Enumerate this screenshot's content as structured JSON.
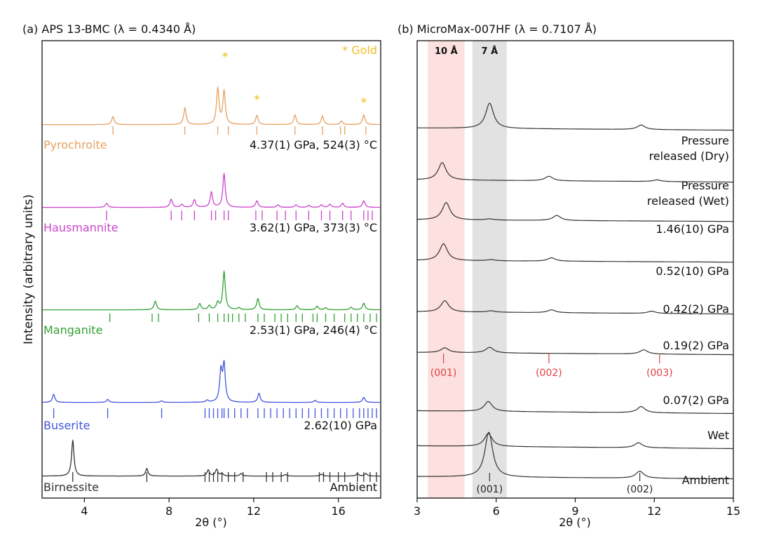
{
  "figure": {
    "ylabel": "Intensity (arbitrary units)",
    "xlabel": "2θ (°)"
  },
  "chart_data": [
    {
      "type": "line",
      "panel": "a",
      "title": "(a) APS 13-BMC (λ = 0.4340 Å)",
      "xlabel": "2θ (°)",
      "ylabel": "Intensity (arbitrary units)",
      "xlim": [
        2,
        18
      ],
      "xticks": [
        4,
        8,
        12,
        16
      ],
      "grid": false,
      "annotation": "* Gold",
      "gold_marker_positions": [
        10.45,
        12.15,
        17.2
      ],
      "series": [
        {
          "name": "Pyrochroite",
          "condition": "4.37(1) GPa, 524(3) °C",
          "color": "#e8a060",
          "baseline": 0,
          "peaks": [
            [
              5.35,
              0.16
            ],
            [
              8.75,
              0.33
            ],
            [
              10.3,
              0.7
            ],
            [
              10.6,
              0.65
            ],
            [
              12.15,
              0.18
            ],
            [
              13.95,
              0.19
            ],
            [
              15.25,
              0.17
            ],
            [
              16.15,
              0.07
            ],
            [
              17.2,
              0.19
            ]
          ],
          "ticks": [
            5.35,
            8.75,
            10.3,
            10.8,
            12.15,
            13.95,
            15.25,
            16.1,
            16.3,
            17.3
          ]
        },
        {
          "name": "Hausmannite",
          "condition": "3.62(1) GPa, 373(3) °C",
          "color": "#cc44cc",
          "baseline": 0,
          "peaks": [
            [
              5.05,
              0.08
            ],
            [
              8.1,
              0.16
            ],
            [
              8.6,
              0.06
            ],
            [
              9.2,
              0.15
            ],
            [
              10.0,
              0.3
            ],
            [
              10.6,
              0.66
            ],
            [
              12.15,
              0.13
            ],
            [
              13.15,
              0.05
            ],
            [
              14.0,
              0.05
            ],
            [
              14.6,
              0.04
            ],
            [
              15.2,
              0.05
            ],
            [
              15.6,
              0.06
            ],
            [
              16.2,
              0.08
            ],
            [
              17.2,
              0.13
            ]
          ],
          "ticks": [
            5.05,
            8.1,
            8.6,
            9.2,
            10.0,
            10.2,
            10.6,
            10.8,
            12.1,
            12.4,
            13.1,
            13.5,
            14.0,
            14.6,
            15.2,
            15.6,
            16.2,
            16.6,
            17.2,
            17.4,
            17.6
          ]
        },
        {
          "name": "Manganite",
          "condition": "2.53(1) GPa, 246(4) °C",
          "color": "#33a033",
          "baseline": 0,
          "peaks": [
            [
              7.35,
              0.17
            ],
            [
              9.45,
              0.12
            ],
            [
              9.9,
              0.08
            ],
            [
              10.3,
              0.14
            ],
            [
              10.6,
              0.75
            ],
            [
              11.3,
              0.04
            ],
            [
              12.2,
              0.22
            ],
            [
              14.05,
              0.08
            ],
            [
              15.0,
              0.07
            ],
            [
              15.4,
              0.04
            ],
            [
              16.6,
              0.05
            ],
            [
              17.2,
              0.13
            ]
          ],
          "ticks": [
            5.2,
            7.2,
            7.5,
            9.4,
            9.9,
            10.3,
            10.6,
            10.8,
            11.0,
            11.3,
            11.6,
            12.2,
            12.5,
            13.0,
            13.3,
            13.6,
            14.0,
            14.3,
            14.8,
            15.0,
            15.4,
            15.8,
            16.3,
            16.6,
            16.9,
            17.2,
            17.5,
            17.8
          ]
        },
        {
          "name": "Buserite",
          "condition": "2.62(10) GPa",
          "color": "#4455dd",
          "baseline": 0,
          "peaks": [
            [
              2.55,
              0.16
            ],
            [
              5.1,
              0.06
            ],
            [
              7.65,
              0.03
            ],
            [
              9.8,
              0.04
            ],
            [
              10.45,
              0.6
            ],
            [
              10.6,
              0.72
            ],
            [
              12.25,
              0.18
            ],
            [
              14.9,
              0.04
            ],
            [
              17.2,
              0.1
            ]
          ],
          "ticks": [
            2.55,
            5.1,
            7.65,
            9.7,
            9.9,
            10.1,
            10.3,
            10.5,
            10.6,
            10.8,
            11.1,
            11.4,
            11.7,
            12.2,
            12.5,
            12.8,
            13.1,
            13.4,
            13.7,
            14.0,
            14.3,
            14.6,
            14.9,
            15.2,
            15.5,
            15.8,
            16.1,
            16.4,
            16.7,
            17.0,
            17.2,
            17.4,
            17.6,
            17.8
          ]
        },
        {
          "name": "Birnessite",
          "condition": "Ambient",
          "color": "#333333",
          "baseline": 0,
          "peaks": [
            [
              3.45,
              0.7
            ],
            [
              6.95,
              0.15
            ],
            [
              9.85,
              0.12
            ],
            [
              10.25,
              0.13
            ],
            [
              10.5,
              0.05
            ],
            [
              11.4,
              0.05
            ],
            [
              13.5,
              0.03
            ],
            [
              15.2,
              0.04
            ],
            [
              16.9,
              0.05
            ],
            [
              17.3,
              0.05
            ]
          ],
          "ticks": [
            3.45,
            6.95,
            9.7,
            9.9,
            10.1,
            10.3,
            10.5,
            10.8,
            11.1,
            11.5,
            12.6,
            12.9,
            13.3,
            13.6,
            15.1,
            15.3,
            15.6,
            16.0,
            16.3,
            16.9,
            17.2,
            17.5,
            17.8
          ]
        }
      ]
    },
    {
      "type": "line",
      "panel": "b",
      "title": "(b) MicroMax-007HF (λ = 0.7107 Å)",
      "xlabel": "2θ (°)",
      "xlim": [
        3,
        15
      ],
      "xticks": [
        3,
        6,
        9,
        12,
        15
      ],
      "grid": false,
      "bands": [
        {
          "label": "10 Å",
          "x": [
            3.4,
            4.8
          ],
          "color": "#fde0e0"
        },
        {
          "label": "7 Å",
          "x": [
            5.1,
            6.4
          ],
          "color": "#e2e2e2"
        }
      ],
      "reflections_10A": [
        {
          "label": "(001)",
          "x": 4.0
        },
        {
          "label": "(002)",
          "x": 8.0
        },
        {
          "label": "(003)",
          "x": 12.2
        }
      ],
      "reflections_7A": [
        {
          "label": "(001)",
          "x": 5.75
        },
        {
          "label": "(002)",
          "x": 11.45
        }
      ],
      "series": [
        {
          "name": "Pressure released (Dry)",
          "peaks": [
            [
              5.75,
              0.9
            ],
            [
              11.5,
              0.16
            ]
          ],
          "bg": 0.2
        },
        {
          "name": "Pressure released (Wet)",
          "peaks": [
            [
              3.95,
              0.62
            ],
            [
              8.0,
              0.16
            ],
            [
              12.1,
              0.06
            ]
          ],
          "bg": 0.2
        },
        {
          "name": "1.46(10) GPa",
          "peaks": [
            [
              4.1,
              0.62
            ],
            [
              8.3,
              0.18
            ],
            [
              5.75,
              0.04
            ]
          ],
          "bg": 0.15
        },
        {
          "name": "0.52(10) GPa",
          "peaks": [
            [
              4.0,
              0.6
            ],
            [
              8.1,
              0.12
            ],
            [
              5.8,
              0.04
            ]
          ],
          "bg": 0.15
        },
        {
          "name": "0.42(2) GPa",
          "peaks": [
            [
              4.05,
              0.4
            ],
            [
              8.1,
              0.1
            ],
            [
              5.8,
              0.05
            ],
            [
              11.9,
              0.08
            ]
          ],
          "bg": 0.2
        },
        {
          "name": "0.19(2) GPa",
          "peaks": [
            [
              4.05,
              0.17
            ],
            [
              5.75,
              0.2
            ],
            [
              11.6,
              0.15
            ]
          ],
          "bg": 0.2
        },
        {
          "name": "0.07(2) GPa",
          "peaks": [
            [
              5.7,
              0.35
            ],
            [
              11.5,
              0.22
            ]
          ],
          "bg": 0.25
        },
        {
          "name": "Wet",
          "peaks": [
            [
              5.7,
              0.46
            ],
            [
              11.4,
              0.18
            ]
          ],
          "bg": 0.25
        },
        {
          "name": "Ambient",
          "peaks": [
            [
              5.72,
              1.6
            ],
            [
              11.45,
              0.25
            ]
          ],
          "bg": 0.2
        }
      ]
    }
  ]
}
